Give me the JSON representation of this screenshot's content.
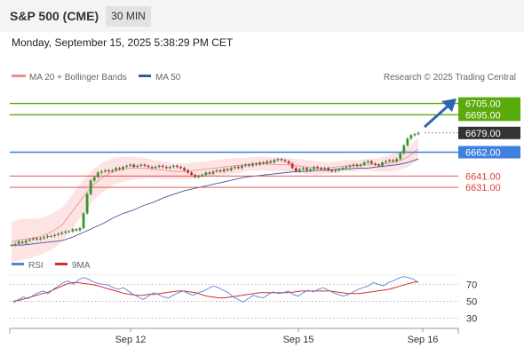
{
  "header": {
    "symbol": "S&P 500 (CME)",
    "timeframe": "30 MIN",
    "datetime": "Monday, September 15, 2025 5:38:29 PM CET"
  },
  "legend": {
    "bollinger": "MA 20 + Bollinger Bands",
    "ma50": "MA 50",
    "credit": "Research © 2025 Trading Central",
    "rsi": "RSI",
    "rsi_ma": "9MA"
  },
  "colors": {
    "up_candle": "#2f9b2f",
    "down_candle": "#c92a2a",
    "target": "#59ab0c",
    "pivot": "#3f7fe0",
    "support": "#e33b3b",
    "last": "#333333",
    "ma50": "#3b5b9a",
    "bollinger": "#f08c8c",
    "rsi": "#5b82d6",
    "rsi_ma": "#d92b2b",
    "arrow": "#2c64b4"
  },
  "chart_data": [
    {
      "type": "candlestick",
      "price_range": [
        6577,
        6718
      ],
      "x_labels": [
        "Sep 12",
        "Sep 15",
        "Sep 16"
      ],
      "levels": [
        {
          "value": 6705.0,
          "label": "6705.00",
          "kind": "target"
        },
        {
          "value": 6695.0,
          "label": "6695.00",
          "kind": "target"
        },
        {
          "value": 6679.0,
          "label": "6679.00",
          "kind": "last"
        },
        {
          "value": 6662.0,
          "label": "6662.00",
          "kind": "pivot"
        },
        {
          "value": 6641.0,
          "label": "6641.00",
          "kind": "support"
        },
        {
          "value": 6631.0,
          "label": "6631.00",
          "kind": "support"
        }
      ],
      "close_series": [
        6580,
        6581,
        6583,
        6582,
        6584,
        6585,
        6586,
        6585,
        6586,
        6587,
        6588,
        6588,
        6589,
        6590,
        6591,
        6592,
        6592,
        6594,
        6593,
        6595,
        6608,
        6625,
        6637,
        6640,
        6644,
        6645,
        6646,
        6645,
        6646,
        6648,
        6647,
        6649,
        6650,
        6651,
        6649,
        6650,
        6651,
        6650,
        6649,
        6648,
        6649,
        6650,
        6649,
        6648,
        6649,
        6650,
        6649,
        6648,
        6646,
        6644,
        6642,
        6640,
        6641,
        6642,
        6644,
        6643,
        6645,
        6646,
        6645,
        6647,
        6646,
        6648,
        6649,
        6648,
        6650,
        6651,
        6650,
        6652,
        6651,
        6653,
        6652,
        6654,
        6653,
        6655,
        6656,
        6655,
        6654,
        6652,
        6648,
        6645,
        6647,
        6648,
        6646,
        6647,
        6649,
        6648,
        6647,
        6648,
        6646,
        6645,
        6646,
        6647,
        6648,
        6649,
        6650,
        6651,
        6650,
        6651,
        6653,
        6654,
        6652,
        6651,
        6650,
        6653,
        6654,
        6655,
        6654,
        6656,
        6661,
        6668,
        6674,
        6677,
        6678,
        6679
      ],
      "ma50_series": [
        6580,
        6580,
        6581,
        6582,
        6583,
        6584,
        6587,
        6591,
        6595,
        6599,
        6604,
        6608,
        6611,
        6615,
        6618,
        6622,
        6625,
        6628,
        6630,
        6632,
        6634,
        6636,
        6638,
        6640,
        6641,
        6642,
        6643,
        6644,
        6645,
        6645,
        6646,
        6646,
        6647,
        6647,
        6648,
        6648,
        6649,
        6650,
        6651,
        6653,
        6656
      ],
      "ma20_series": [
        6583,
        6585,
        6586,
        6588,
        6592,
        6598,
        6610,
        6622,
        6633,
        6640,
        6645,
        6647,
        6648,
        6648,
        6647,
        6646,
        6645,
        6645,
        6646,
        6647,
        6648,
        6649,
        6650,
        6651,
        6652,
        6652,
        6651,
        6651,
        6650,
        6649,
        6648,
        6648,
        6649,
        6650,
        6650,
        6651,
        6651,
        6652,
        6654,
        6658,
        6665
      ]
    },
    {
      "type": "line",
      "title": "RSI",
      "y_ticks": [
        70,
        50,
        30
      ],
      "y_range": [
        20,
        85
      ],
      "rsi_series": [
        48,
        52,
        55,
        53,
        57,
        60,
        62,
        59,
        64,
        68,
        72,
        74,
        70,
        75,
        78,
        76,
        73,
        71,
        70,
        69,
        66,
        64,
        66,
        62,
        58,
        55,
        52,
        56,
        60,
        58,
        55,
        54,
        57,
        60,
        62,
        59,
        57,
        60,
        62,
        65,
        68,
        66,
        63,
        60,
        55,
        52,
        49,
        53,
        57,
        55,
        54,
        58,
        61,
        59,
        60,
        62,
        58,
        56,
        60,
        63,
        61,
        64,
        66,
        63,
        60,
        58,
        56,
        58,
        61,
        64,
        66,
        68,
        72,
        70,
        68,
        72,
        74,
        77,
        79,
        78,
        76,
        72
      ],
      "rsi_ma_series": [
        50,
        51,
        53,
        55,
        57,
        59,
        61,
        64,
        67,
        70,
        72,
        72,
        71,
        70,
        69,
        67,
        65,
        63,
        61,
        59,
        58,
        57,
        57,
        58,
        58,
        59,
        60,
        61,
        62,
        62,
        61,
        60,
        58,
        56,
        55,
        54,
        54,
        55,
        56,
        57,
        58,
        59,
        60,
        60,
        60,
        60,
        60,
        60,
        61,
        62,
        62,
        62,
        62,
        62,
        62,
        61,
        60,
        59,
        59,
        59,
        60,
        61,
        62,
        63,
        64,
        66,
        68,
        70,
        72,
        73
      ]
    }
  ]
}
